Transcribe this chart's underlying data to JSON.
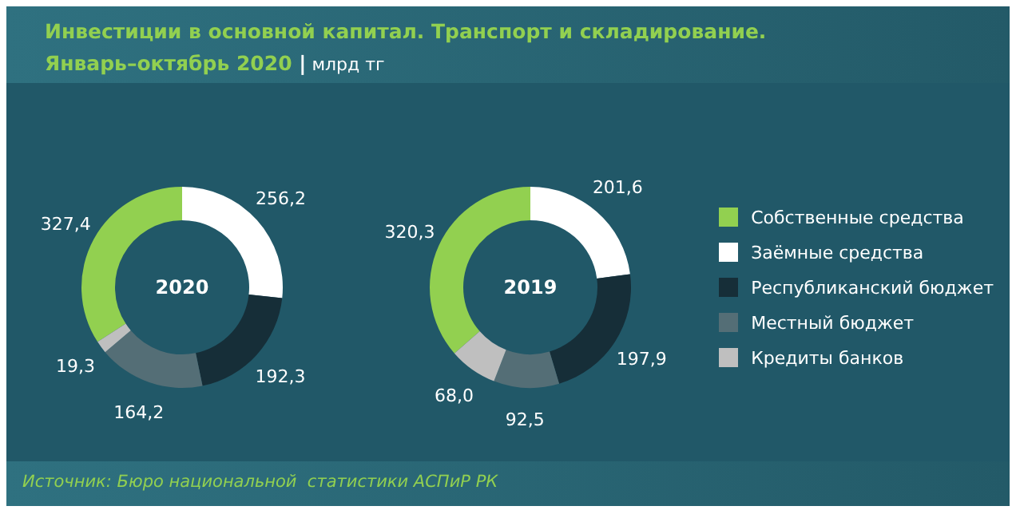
{
  "chart_data": {
    "type": "donut",
    "title": "Инвестиции в основной капитал. Транспорт и складирование.",
    "subtitle": "Январь–октябрь 2020 | млрд тг",
    "annotations": [
      "Источник: Бюро национальной  статистики АСПиР РК"
    ],
    "categories": [
      "Собственные средства",
      "Заёмные средства",
      "Республиканский бюджет",
      "Местный бюджет",
      "Кредиты банков"
    ],
    "colors": [
      "#92d050",
      "#ffffff",
      "#162e38",
      "#546e76",
      "#bfbfbf"
    ],
    "legend": "right",
    "series": [
      {
        "name": "2020",
        "values": [
          327.4,
          256.2,
          192.3,
          164.2,
          19.3
        ],
        "value_labels": [
          "327,4",
          "256,2",
          "192,3",
          "164,2",
          "19,3"
        ]
      },
      {
        "name": "2019",
        "values": [
          320.3,
          201.6,
          197.9,
          92.5,
          68.0
        ],
        "value_labels": [
          "320,3",
          "201,6",
          "197,9",
          "92,5",
          "68,0"
        ]
      }
    ]
  }
}
